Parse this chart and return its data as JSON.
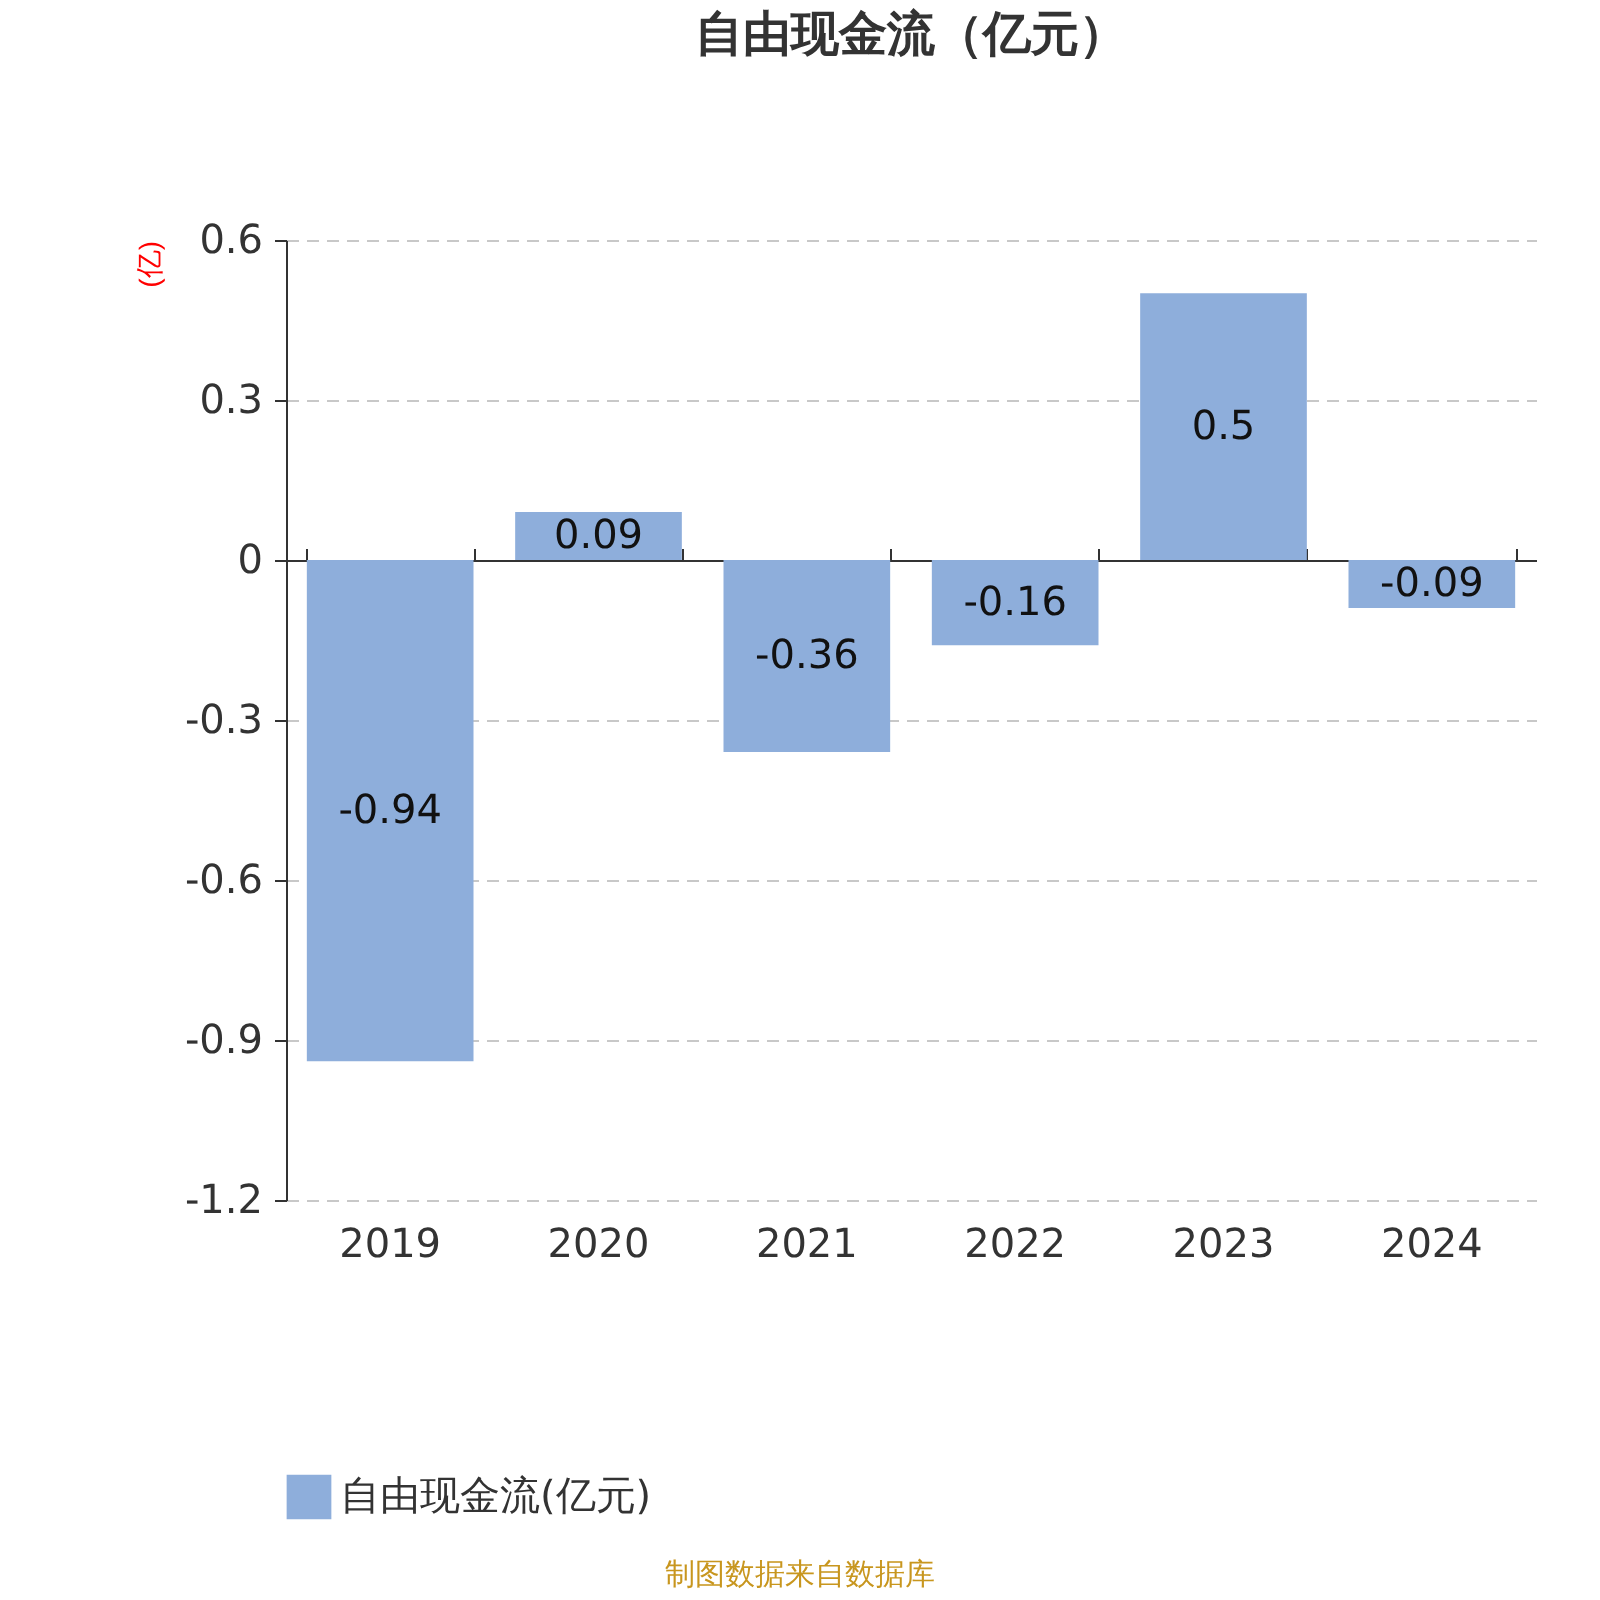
{
  "chart_data": {
    "type": "bar",
    "title": "自由现金流（亿元）",
    "ylabel": "(亿)",
    "categories": [
      "2019",
      "2020",
      "2021",
      "2022",
      "2023",
      "2024"
    ],
    "series": [
      {
        "name": "自由现金流(亿元)",
        "color": "#8eaedb",
        "values": [
          -0.94,
          0.09,
          -0.36,
          -0.16,
          0.5,
          -0.09
        ]
      }
    ],
    "ylim": [
      -1.2,
      0.6
    ],
    "yticks": [
      -1.2,
      -0.9,
      -0.6,
      -0.3,
      0,
      0.3,
      0.6
    ],
    "grid": "y",
    "legend": "bottom",
    "data_labels": true,
    "annotations": [
      "制图数据来自数据库"
    ]
  }
}
